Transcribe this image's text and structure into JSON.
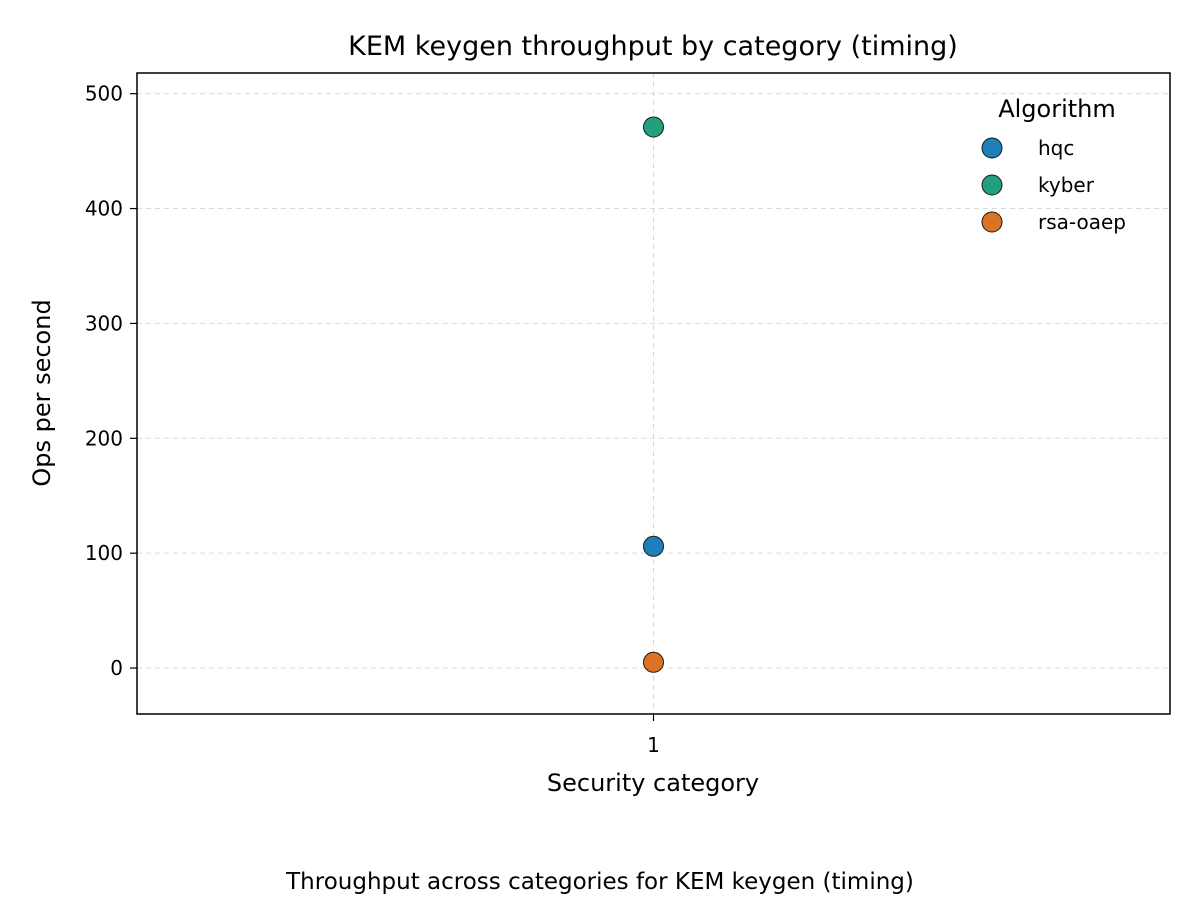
{
  "chart_data": {
    "type": "scatter",
    "title": "KEM keygen throughput by category (timing)",
    "caption": "Throughput across categories for KEM keygen (timing)",
    "xlabel": "Security category",
    "ylabel": "Ops per second",
    "x_ticks": [
      "1"
    ],
    "y_ticks": [
      0,
      100,
      200,
      300,
      400,
      500
    ],
    "ylim": [
      -40,
      518
    ],
    "grid": true,
    "legend": {
      "title": "Algorithm",
      "placement": "top-right"
    },
    "series": [
      {
        "name": "hqc",
        "color": "#1f7fb8",
        "points": [
          {
            "x": "1",
            "y": 106
          }
        ]
      },
      {
        "name": "kyber",
        "color": "#22a07e",
        "points": [
          {
            "x": "1",
            "y": 471
          }
        ]
      },
      {
        "name": "rsa-oaep",
        "color": "#dd7224",
        "points": [
          {
            "x": "1",
            "y": 5
          }
        ]
      }
    ]
  }
}
